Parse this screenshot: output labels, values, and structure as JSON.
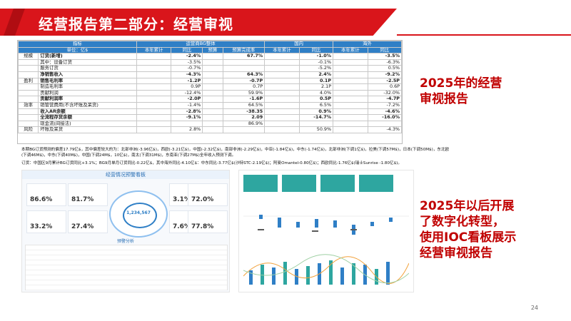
{
  "title": "经营报告第二部分：经营审视",
  "table": {
    "h1": [
      "指标",
      "运营商BG整体",
      "国内",
      "海外"
    ],
    "h2": [
      "单位：亿$",
      "本年累计",
      "同比",
      "预算",
      "预算完成率",
      "本年累计",
      "同比",
      "本年累计",
      "同比"
    ],
    "rows": [
      {
        "g": "规模",
        "name": "订货(新增)",
        "c": [
          "",
          "-2.4%",
          "",
          "67.7%",
          "",
          "-1.0%",
          "",
          "-3.5%"
        ],
        "bold": true
      },
      {
        "g": "",
        "name": "其中：设备订货",
        "c": [
          "",
          "-3.5%",
          "",
          "",
          "",
          "-0.1%",
          "",
          "-6.3%"
        ]
      },
      {
        "g": "",
        "name": "服务订货",
        "c": [
          "",
          "-0.7%",
          "",
          "",
          "",
          "-5.2%",
          "",
          "0.5%"
        ]
      },
      {
        "g": "",
        "name": "净销售收入",
        "c": [
          "",
          "-4.3%",
          "",
          "64.3%",
          "",
          "2.4%",
          "",
          "-9.2%"
        ],
        "bold": true
      },
      {
        "g": "盈利",
        "name": "销售毛利率",
        "c": [
          "",
          "-1.2P",
          "",
          "-0.7P",
          "",
          "0.1P",
          "",
          "-2.5P"
        ],
        "bold": true
      },
      {
        "g": "",
        "name": "制造毛利率",
        "c": [
          "",
          "0.9P",
          "",
          "0.7P",
          "",
          "2.1P",
          "",
          "0.6P"
        ]
      },
      {
        "g": "",
        "name": "贡献利润",
        "c": [
          "",
          "-12.4%",
          "",
          "59.9%",
          "",
          "4.0%",
          "",
          "-32.0%"
        ]
      },
      {
        "g": "",
        "name": "贡献利润率",
        "c": [
          "",
          "-2.0P",
          "",
          "-1.6P",
          "",
          "0.5P",
          "",
          "-4.7P"
        ],
        "bold": true
      },
      {
        "g": "效率",
        "name": "销管营费用(不含坏账及呆货)",
        "c": [
          "",
          "-1.4%",
          "",
          "64.5%",
          "",
          "6.5%",
          "",
          "-7.2%"
        ]
      },
      {
        "g": "",
        "name": "收入AR余额",
        "c": [
          "",
          "-2.8%",
          "",
          "-38.35",
          "",
          "0.9%",
          "",
          "-4.6%"
        ],
        "bold": true
      },
      {
        "g": "",
        "name": "全流程存货余额",
        "c": [
          "",
          "-9.1%",
          "",
          "2.09",
          "",
          "-14.7%",
          "",
          "-16.0%"
        ],
        "bold": true
      },
      {
        "g": "",
        "name": "现金流(间接法)",
        "c": [
          "",
          "",
          "",
          "86.9%",
          "",
          "",
          "",
          ""
        ]
      },
      {
        "g": "风险",
        "name": "坏账及呆货",
        "c": [
          "",
          "2.8%",
          "",
          "",
          "",
          "50.9%",
          "",
          "-4.3%"
        ]
      }
    ]
  },
  "notes": [
    "本期BG订货预测的偏差17.79亿$，其中偏差较大的为：北部非洲(-3.96亿$)，西欧(-3.21亿$)，中国(-2.32亿$)，南部非洲(-2.29亿$)，中亚(-1.84亿$)，中东(-1.74亿$)，北部非洲(下调1亿$)，拉美(下调57M$)，日本(下调50M$)，东北欧(下调46M$)，中东(下调40M$)，中国(下调24M$，10亿$)，南太(下调31M$)，东南亚(下调27M$)全年收入预测下调。",
    "订货：中国区9月累计BG订货同比+3.1%；BG9月单月订货同比-0.22亿$，其中海外同比-4.10亿$：中东同比-3.77亿$(沙特STC-2.19亿$)；阿曼Omantel-0.80亿$)；西欧同比-1.76亿$(瑞士Sunrise -1.80亿$)。"
  ],
  "right_text_1": [
    "2025年的经营",
    "审视报告"
  ],
  "right_text_2": [
    "2025年以后开展",
    "了数字化转型，",
    "使用IOC看板展示",
    "经营审视报告"
  ],
  "dashboard": {
    "title": "经营情况预警看板",
    "cards": [
      "86.6%",
      "81.7%",
      "3.1%",
      "72.0%",
      "33.2%",
      "27.4%",
      "7.6%",
      "77.8%"
    ],
    "gauge_value": "1,234,567",
    "sub_title": "预警分析"
  },
  "page_number": "24",
  "colors": {
    "red": "#d9151b",
    "blue": "#2f7fc6",
    "teal": "#2ea6a0"
  }
}
